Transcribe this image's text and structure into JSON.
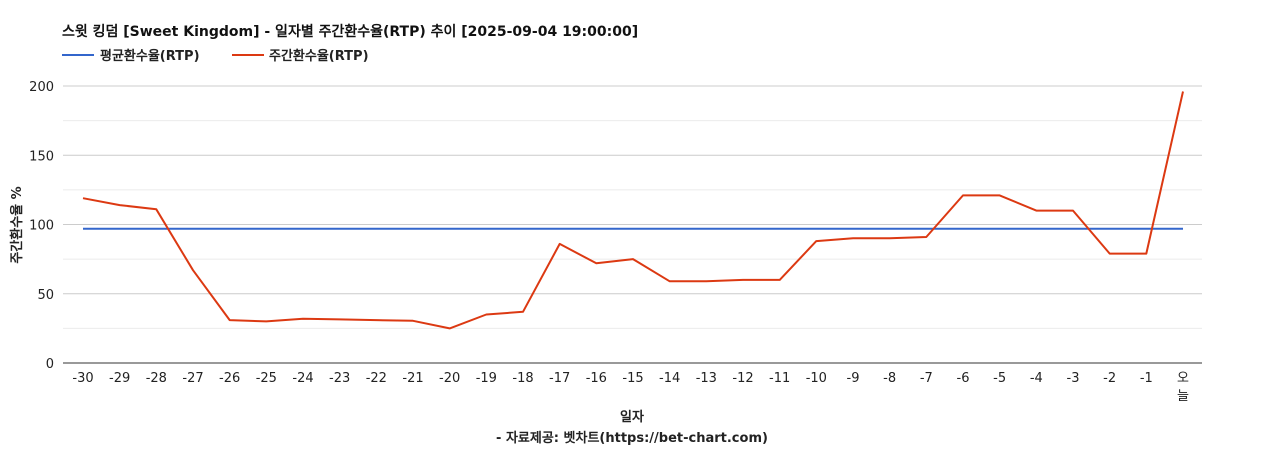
{
  "chart_data": {
    "type": "line",
    "title": "스윗 킹덤 [Sweet Kingdom] - 일자별 주간환수율(RTP) 추이 [2025-09-04 19:00:00]",
    "xlabel": "일자",
    "ylabel": "주간환수율 %",
    "source_note": "- 자료제공: 벳차트(https://bet-chart.com)",
    "categories": [
      "-30",
      "-29",
      "-28",
      "-27",
      "-26",
      "-25",
      "-24",
      "-23",
      "-22",
      "-21",
      "-20",
      "-19",
      "-18",
      "-17",
      "-16",
      "-15",
      "-14",
      "-13",
      "-12",
      "-11",
      "-10",
      "-9",
      "-8",
      "-7",
      "-6",
      "-5",
      "-4",
      "-3",
      "-2",
      "-1",
      "오늘"
    ],
    "yticks": [
      "0",
      "50",
      "100",
      "150",
      "200"
    ],
    "ylim": [
      0,
      200
    ],
    "grid": true,
    "legend_position": "top-left",
    "series": [
      {
        "name": "평균환수율(RTP)",
        "color": "#3366cc",
        "values": [
          97,
          97,
          97,
          97,
          97,
          97,
          97,
          97,
          97,
          97,
          97,
          97,
          97,
          97,
          97,
          97,
          97,
          97,
          97,
          97,
          97,
          97,
          97,
          97,
          97,
          97,
          97,
          97,
          97,
          97,
          97
        ]
      },
      {
        "name": "주간환수율(RTP)",
        "color": "#dc3912",
        "values": [
          119,
          114,
          111,
          67,
          31,
          30,
          32,
          31.5,
          31,
          30.5,
          25,
          35,
          37,
          86,
          72,
          75,
          59,
          59,
          60,
          60,
          88,
          90,
          90,
          91,
          121,
          121,
          110,
          110,
          79,
          79,
          196
        ]
      }
    ]
  }
}
